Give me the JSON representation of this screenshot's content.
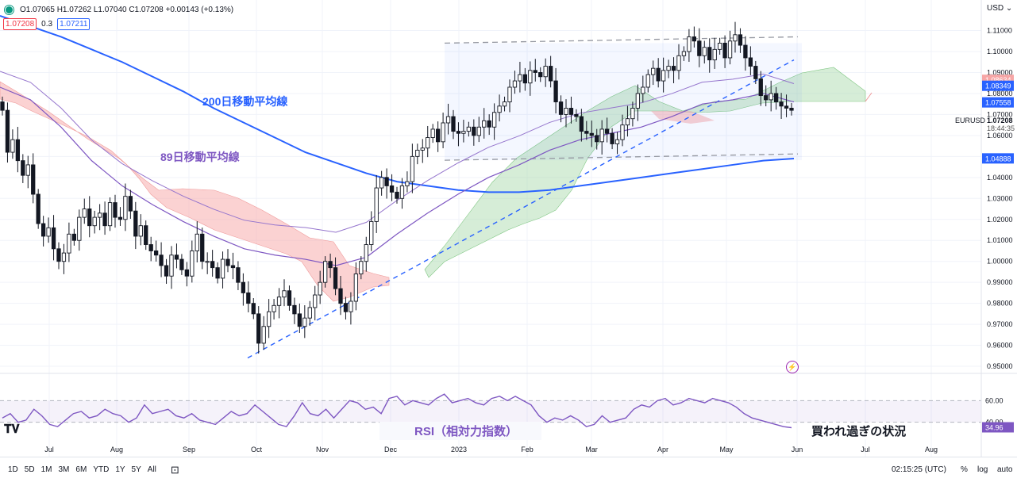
{
  "legend": {
    "ohlc": "O1.07065 H1.07262 L1.07040 C1.07208 +0.00143 (+0.13%)",
    "ind_left": "1.07208",
    "ind_mid": "0.3",
    "ind_right": "1.07211"
  },
  "currency": "USD",
  "symbol": "EURUSD",
  "last_price": "1.07208",
  "countdown": "18:44:35",
  "timeframes": [
    "1D",
    "5D",
    "1M",
    "3M",
    "6M",
    "YTD",
    "1Y",
    "5Y",
    "All"
  ],
  "clock": "02:15:25 (UTC)",
  "right_controls": [
    "%",
    "log",
    "auto"
  ],
  "annotations": {
    "ma200": "200日移動平均線",
    "ma89": "89日移動平均線",
    "rsi": "RSI（相対力指数）",
    "overbought": "買われ過ぎの状況"
  },
  "colors": {
    "up": "#089981",
    "candle": "#131722",
    "ma200": "#2962ff",
    "ma89": "#7e57c2",
    "cloud_bull": "#a5d6a7",
    "cloud_bear": "#f7a6a6",
    "rsi": "#7e57c2",
    "channel": "#9598a1",
    "trend": "#2962ff"
  },
  "chart_data": {
    "type": "candlestick",
    "instrument": "EURUSD",
    "interval": "1D",
    "y_axis_ticks": [
      "1.11000",
      "1.10000",
      "1.09000",
      "1.08000",
      "1.07000",
      "1.06000",
      "1.05000",
      "1.04000",
      "1.03000",
      "1.02000",
      "1.01000",
      "1.00000",
      "0.99000",
      "0.98000",
      "0.97000",
      "0.96000",
      "0.95000"
    ],
    "y_ticks_values": [
      1.11,
      1.1,
      1.09,
      1.08,
      1.07,
      1.06,
      1.05,
      1.04,
      1.03,
      1.02,
      1.01,
      1.0,
      0.99,
      0.98,
      0.97,
      0.96,
      0.95
    ],
    "ylim": [
      0.947,
      1.117
    ],
    "x_axis_labels": [
      "Jul",
      "Aug",
      "Sep",
      "Oct",
      "Nov",
      "Dec",
      "2023",
      "Feb",
      "Mar",
      "Apr",
      "May",
      "Jun",
      "Jul",
      "Aug"
    ],
    "price_labels": [
      {
        "text": "1.08634",
        "value": 1.08634,
        "color": "#f7a6a6"
      },
      {
        "text": "1.08349",
        "value": 1.08349,
        "color": "#2962ff"
      },
      {
        "text": "1.07558",
        "value": 1.07558,
        "color": "#2962ff"
      },
      {
        "text": "1.04888",
        "value": 1.04888,
        "color": "#2962ff"
      }
    ],
    "closes": [
      1.072,
      1.052,
      1.058,
      1.048,
      1.041,
      1.046,
      1.032,
      1.018,
      1.012,
      1.016,
      1.006,
      1.0,
      1.004,
      1.013,
      1.01,
      1.021,
      1.025,
      1.017,
      1.021,
      1.023,
      1.017,
      1.028,
      1.021,
      1.02,
      1.031,
      1.024,
      1.012,
      1.017,
      1.008,
      1.005,
      1.003,
      0.998,
      0.993,
      1.003,
      1.001,
      0.996,
      0.993,
      1.005,
      1.013,
      1.0,
      1.0,
      0.997,
      0.992,
      1.001,
      0.998,
      0.997,
      0.99,
      0.985,
      0.98,
      0.975,
      0.961,
      0.969,
      0.976,
      0.979,
      0.983,
      0.986,
      0.979,
      0.975,
      0.969,
      0.973,
      0.978,
      0.984,
      0.99,
      1.0,
      0.997,
      0.987,
      0.98,
      0.976,
      0.981,
      0.994,
      1.0,
      1.008,
      1.019,
      1.035,
      1.04,
      1.036,
      1.033,
      1.03,
      1.036,
      1.038,
      1.05,
      1.053,
      1.054,
      1.059,
      1.063,
      1.057,
      1.066,
      1.069,
      1.062,
      1.061,
      1.062,
      1.064,
      1.06,
      1.064,
      1.067,
      1.064,
      1.071,
      1.074,
      1.076,
      1.083,
      1.086,
      1.089,
      1.085,
      1.091,
      1.09,
      1.088,
      1.093,
      1.086,
      1.076,
      1.07,
      1.073,
      1.07,
      1.069,
      1.062,
      1.061,
      1.06,
      1.057,
      1.063,
      1.061,
      1.056,
      1.058,
      1.065,
      1.068,
      1.073,
      1.08,
      1.083,
      1.089,
      1.092,
      1.086,
      1.091,
      1.093,
      1.091,
      1.098,
      1.1,
      1.107,
      1.105,
      1.098,
      1.102,
      1.096,
      1.101,
      1.104,
      1.097,
      1.105,
      1.108,
      1.103,
      1.097,
      1.093,
      1.087,
      1.079,
      1.077,
      1.08,
      1.076,
      1.074,
      1.073,
      1.072
    ],
    "ma200": [
      1.117,
      1.112,
      1.107,
      1.101,
      1.095,
      1.088,
      1.081,
      1.073,
      1.066,
      1.059,
      1.052,
      1.047,
      1.042,
      1.038,
      1.036,
      1.034,
      1.033,
      1.033,
      1.034,
      1.036,
      1.038,
      1.04,
      1.042,
      1.044,
      1.046,
      1.048,
      1.049
    ],
    "ma89": [
      1.083,
      1.077,
      1.064,
      1.048,
      1.036,
      1.027,
      1.019,
      1.012,
      1.006,
      1.003,
      1.001,
      0.998,
      1.002,
      1.013,
      1.023,
      1.032,
      1.04,
      1.046,
      1.053,
      1.058,
      1.061,
      1.064,
      1.069,
      1.075,
      1.077,
      1.08,
      1.076
    ],
    "rsi_pane": {
      "levels": [
        60.0,
        40.0
      ],
      "y_labels": [
        "60.00",
        "40.00"
      ],
      "last_value": "34.96",
      "values": [
        44,
        48,
        40,
        42,
        52,
        46,
        38,
        36,
        42,
        48,
        50,
        44,
        46,
        52,
        48,
        46,
        40,
        44,
        56,
        48,
        50,
        52,
        46,
        44,
        48,
        42,
        40,
        38,
        44,
        50,
        46,
        48,
        56,
        50,
        44,
        38,
        36,
        46,
        58,
        48,
        46,
        52,
        44,
        52,
        60,
        58,
        52,
        54,
        48,
        62,
        64,
        56,
        60,
        58,
        56,
        62,
        66,
        58,
        60,
        62,
        58,
        56,
        62,
        64,
        60,
        64,
        60,
        56,
        46,
        40,
        44,
        42,
        46,
        42,
        36,
        38,
        46,
        40,
        42,
        44,
        52,
        56,
        54,
        60,
        62,
        56,
        58,
        62,
        60,
        58,
        62,
        60,
        58,
        54,
        48,
        44,
        42,
        40,
        38,
        36,
        35
      ]
    },
    "channel_upper": [
      1.104,
      1.107
    ],
    "channel_lower": [
      1.0482,
      1.0512
    ],
    "trend_line": [
      0.954,
      1.096
    ]
  }
}
